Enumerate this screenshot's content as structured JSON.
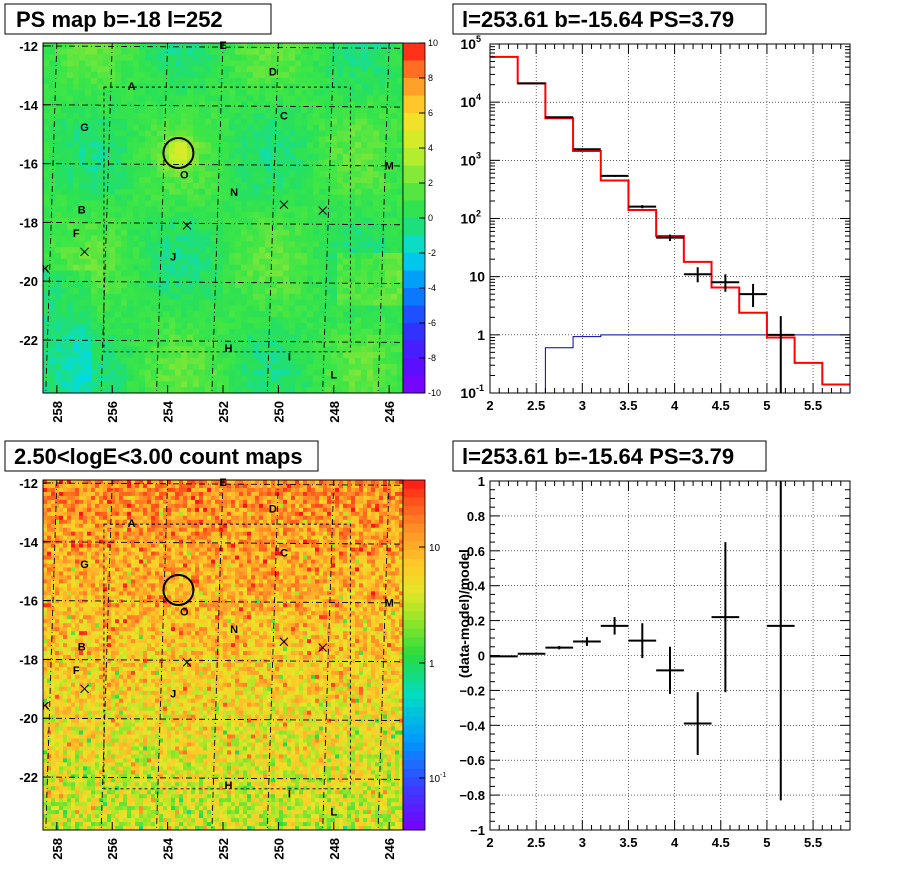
{
  "panels": {
    "ps_map": {
      "title": "PS map b=-18 l=252",
      "yticks": [
        "-12",
        "-14",
        "-16",
        "-18",
        "-20",
        "-22"
      ],
      "xticks": [
        "258",
        "256",
        "254",
        "252",
        "250",
        "248",
        "246"
      ],
      "colorbar_ticks": [
        "10",
        "8",
        "6",
        "4",
        "2",
        "0",
        "-2",
        "-4",
        "-6",
        "-8",
        "-10"
      ]
    },
    "spectrum": {
      "title": "l=253.61 b=-15.64 PS=3.79"
    },
    "count_map": {
      "title": "2.50<logE<3.00 count maps",
      "yticks": [
        "-12",
        "-14",
        "-16",
        "-18",
        "-20",
        "-22"
      ],
      "xticks": [
        "258",
        "256",
        "254",
        "252",
        "250",
        "248",
        "246"
      ],
      "colorbar_ticks": [
        "10",
        "1",
        "10"
      ],
      "colorbar_sup": "-1"
    },
    "residual": {
      "title": "l=253.61 b=-15.64 PS=3.79"
    }
  },
  "source_labels": [
    "A",
    "B",
    "C",
    "D",
    "E",
    "F",
    "G",
    "H",
    "I",
    "J",
    "K",
    "L",
    "M",
    "N",
    "O"
  ],
  "colors": {
    "model_red": "#ff0000",
    "model_blue": "#0000aa",
    "data_black": "#000000",
    "map_green": "#33e043",
    "count_orange": "#f5a623"
  },
  "chart_data": [
    {
      "type": "heatmap",
      "title": "PS map b=-18 l=252",
      "xlabel": "",
      "ylabel": "",
      "xlim": [
        258.5,
        245.5
      ],
      "ylim": [
        -23.8,
        -11.9
      ],
      "zlim": [
        -10,
        10
      ],
      "circle": {
        "l": 253.61,
        "b": -15.64
      },
      "crosses": [
        {
          "l": 257.0,
          "b": -19.0
        },
        {
          "l": 253.3,
          "b": -18.1
        },
        {
          "l": 249.8,
          "b": -17.4
        },
        {
          "l": 248.4,
          "b": -17.6
        }
      ],
      "sources": [
        {
          "name": "E",
          "l": 252.0,
          "b": -12.1
        },
        {
          "name": "D",
          "l": 250.2,
          "b": -13.0
        },
        {
          "name": "A",
          "l": 255.3,
          "b": -13.5
        },
        {
          "name": "C",
          "l": 249.8,
          "b": -14.5
        },
        {
          "name": "G",
          "l": 257.0,
          "b": -14.9
        },
        {
          "name": "M",
          "l": 246.0,
          "b": -16.2
        },
        {
          "name": "O",
          "l": 253.4,
          "b": -16.5
        },
        {
          "name": "N",
          "l": 251.6,
          "b": -17.1
        },
        {
          "name": "B",
          "l": 257.1,
          "b": -17.7
        },
        {
          "name": "F",
          "l": 257.3,
          "b": -18.5
        },
        {
          "name": "J",
          "l": 253.8,
          "b": -19.3
        },
        {
          "name": "K",
          "l": 258.4,
          "b": -19.7
        },
        {
          "name": "H",
          "l": 251.8,
          "b": -22.4
        },
        {
          "name": "I",
          "l": 249.6,
          "b": -22.7
        },
        {
          "name": "L",
          "l": 248.0,
          "b": -23.3
        }
      ]
    },
    {
      "type": "line",
      "title": "l=253.61 b=-15.64 PS=3.79",
      "xlabel": "",
      "ylabel": "",
      "xlim": [
        2.0,
        5.9
      ],
      "ylim": [
        0.1,
        100000
      ],
      "yscale": "log",
      "grid": true,
      "series": [
        {
          "values": [
            {
              "x1": 2.0,
              "x2": 2.3,
              "y": 60000
            },
            {
              "x1": 2.3,
              "x2": 2.6,
              "y": 21000
            },
            {
              "x1": 2.6,
              "x2": 2.9,
              "y": 5300
            },
            {
              "x1": 2.9,
              "x2": 3.2,
              "y": 1450
            },
            {
              "x1": 3.2,
              "x2": 3.5,
              "y": 450
            },
            {
              "x1": 3.5,
              "x2": 3.8,
              "y": 140
            },
            {
              "x1": 3.8,
              "x2": 4.1,
              "y": 50
            },
            {
              "x1": 4.1,
              "x2": 4.4,
              "y": 18
            },
            {
              "x1": 4.4,
              "x2": 4.7,
              "y": 6.5
            },
            {
              "x1": 4.7,
              "x2": 5.0,
              "y": 2.4
            },
            {
              "x1": 5.0,
              "x2": 5.3,
              "y": 0.9
            },
            {
              "x1": 5.3,
              "x2": 5.6,
              "y": 0.33
            },
            {
              "x1": 5.6,
              "x2": 5.9,
              "y": 0.14
            }
          ]
        },
        {
          "values": [
            {
              "x1": 2.3,
              "x2": 2.6,
              "y": 0.1
            },
            {
              "x1": 2.6,
              "x2": 2.9,
              "y": 0.6
            },
            {
              "x1": 2.9,
              "x2": 3.2,
              "y": 0.93
            },
            {
              "x1": 3.2,
              "x2": 5.9,
              "y": 1.0
            }
          ]
        },
        {
          "points": [
            {
              "x": 2.45,
              "y": 21000,
              "ylo": 20800,
              "yhi": 21200
            },
            {
              "x": 2.75,
              "y": 5500,
              "ylo": 5400,
              "yhi": 5600
            },
            {
              "x": 3.05,
              "y": 1550,
              "ylo": 1500,
              "yhi": 1600
            },
            {
              "x": 3.35,
              "y": 540,
              "ylo": 520,
              "yhi": 560
            },
            {
              "x": 3.65,
              "y": 160,
              "ylo": 150,
              "yhi": 170
            },
            {
              "x": 3.95,
              "y": 47,
              "ylo": 41,
              "yhi": 53
            },
            {
              "x": 4.25,
              "y": 11,
              "ylo": 8,
              "yhi": 14.5
            },
            {
              "x": 4.55,
              "y": 8,
              "ylo": 5.5,
              "yhi": 11
            },
            {
              "x": 4.85,
              "y": 5,
              "ylo": 3,
              "yhi": 7.5
            },
            {
              "x": 5.15,
              "y": 1.0,
              "ylo": 0.1,
              "yhi": 2.1
            }
          ]
        }
      ]
    },
    {
      "type": "heatmap",
      "title": "2.50<logE<3.00 count maps",
      "xlabel": "",
      "ylabel": "",
      "xlim": [
        258.5,
        245.5
      ],
      "ylim": [
        -23.8,
        -11.9
      ],
      "zscale": "log",
      "zlim": [
        0.03,
        40
      ]
    },
    {
      "type": "scatter",
      "title": "l=253.61 b=-15.64 PS=3.79",
      "xlabel": "",
      "ylabel": "(data-model)/model",
      "xlim": [
        2.0,
        5.9
      ],
      "ylim": [
        -1,
        1
      ],
      "grid": true,
      "points": [
        {
          "x": 2.15,
          "y": -0.005,
          "yerr": 0.003
        },
        {
          "x": 2.45,
          "y": 0.01,
          "yerr": 0.004
        },
        {
          "x": 2.75,
          "y": 0.045,
          "yerr": 0.01
        },
        {
          "x": 3.05,
          "y": 0.08,
          "yerr": 0.025
        },
        {
          "x": 3.35,
          "y": 0.17,
          "yerr": 0.05
        },
        {
          "x": 3.65,
          "y": 0.085,
          "yerr": 0.1
        },
        {
          "x": 3.95,
          "y": -0.085,
          "yerr": 0.135
        },
        {
          "x": 4.25,
          "y": -0.39,
          "yerr": 0.18
        },
        {
          "x": 4.55,
          "y": 0.22,
          "yerr": 0.43
        },
        {
          "x": 5.15,
          "y": 0.17,
          "yerr": 1.0
        }
      ]
    }
  ]
}
